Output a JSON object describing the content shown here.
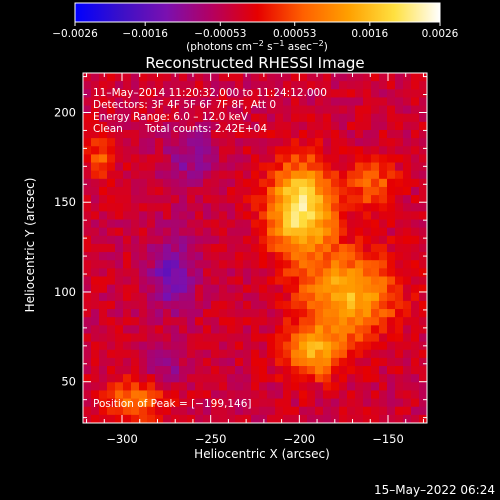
{
  "chart_data": {
    "type": "heatmap",
    "title": "Reconstructed RHESSI Image",
    "xlabel": "Heliocentric X (arcsec)",
    "ylabel": "Heliocentric Y (arcsec)",
    "xlim": [
      -322,
      -128
    ],
    "ylim": [
      27,
      222
    ],
    "xticks": [
      -300,
      -250,
      -200,
      -150
    ],
    "xtick_labels": [
      "−300",
      "−250",
      "−200",
      "−150"
    ],
    "yticks": [
      50,
      100,
      150,
      200
    ],
    "ytick_labels": [
      "50",
      "100",
      "150",
      "200"
    ],
    "colorbar": {
      "range": [
        -0.0026,
        0.0026
      ],
      "ticks": [
        -0.0026,
        -0.0016,
        -0.00053,
        0.00053,
        0.0016,
        0.0026
      ],
      "tick_labels": [
        "−0.0026",
        "−0.0016",
        "−0.00053",
        "0.00053",
        "0.0016",
        "0.0026"
      ],
      "unit_parts": [
        "(photons cm",
        "−2",
        " s",
        "−1",
        " asec",
        "−2",
        ")"
      ],
      "colormap": [
        "#0000ff",
        "#3a10c8",
        "#7a10b0",
        "#b40060",
        "#e60000",
        "#ff6000",
        "#ffa000",
        "#ffe040",
        "#ffffff"
      ]
    },
    "peak": [
      -199,
      146
    ],
    "sources": [
      {
        "x": -199,
        "y": 146,
        "peak": 0.0026,
        "sigma_x": 13,
        "sigma_y": 18
      },
      {
        "x": -172,
        "y": 98,
        "peak": 0.0019,
        "sigma_x": 18,
        "sigma_y": 16
      },
      {
        "x": -192,
        "y": 66,
        "peak": 0.0016,
        "sigma_x": 12,
        "sigma_y": 10
      },
      {
        "x": -158,
        "y": 160,
        "peak": 0.001,
        "sigma_x": 9,
        "sigma_y": 10
      },
      {
        "x": -292,
        "y": 40,
        "peak": 0.0012,
        "sigma_x": 12,
        "sigma_y": 8
      },
      {
        "x": -312,
        "y": 175,
        "peak": 0.0009,
        "sigma_x": 6,
        "sigma_y": 8
      }
    ],
    "negative_sources": [
      {
        "x": -272,
        "y": 110,
        "peak": -0.0011,
        "sigma_x": 9,
        "sigma_y": 14
      },
      {
        "x": -262,
        "y": 175,
        "peak": -0.0007,
        "sigma_x": 10,
        "sigma_y": 12
      },
      {
        "x": -275,
        "y": 55,
        "peak": -0.0006,
        "sigma_x": 8,
        "sigma_y": 8
      }
    ],
    "grid": false
  },
  "overlay": {
    "time_range": "11–May–2014 11:20:32.000 to 11:24:12.000",
    "detectors": "Detectors: 3F 4F 5F 6F 7F 8F, Att 0",
    "energy": "Energy Range: 6.0 – 12.0 keV",
    "algorithm": "Clean",
    "total_counts": "Total counts: 2.42E+04",
    "peak_position": "Position of Peak = [−199,146]"
  },
  "footer": {
    "timestamp": "15–May–2022 06:24"
  }
}
